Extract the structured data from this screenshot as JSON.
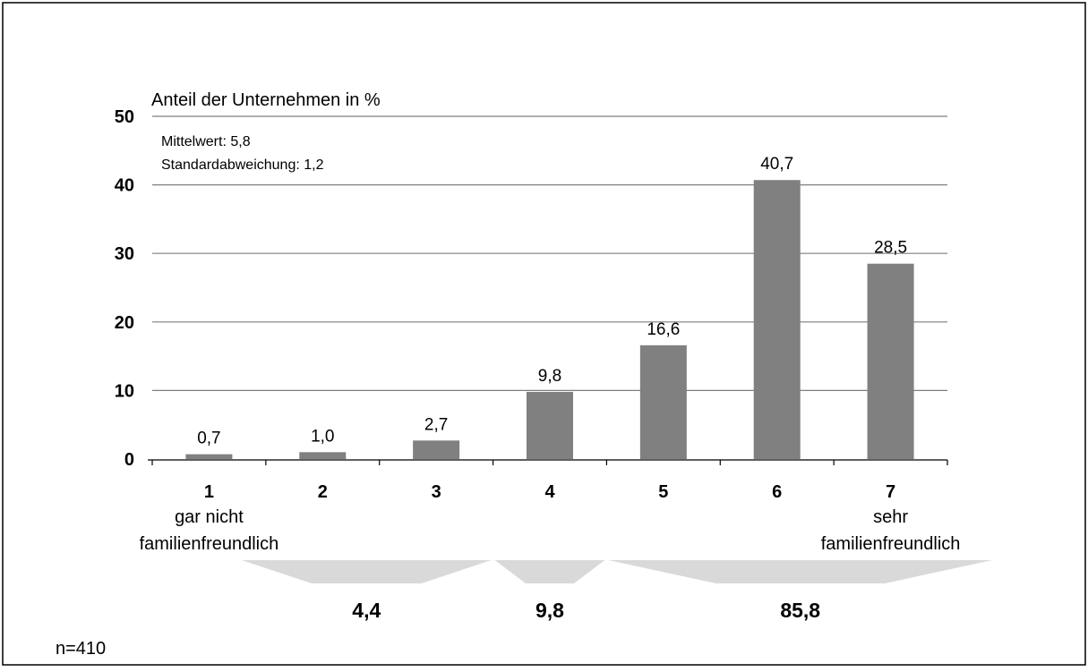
{
  "chart_data": {
    "type": "bar",
    "ylabel": "Anteil der Unternehmen in %",
    "ylim": [
      0,
      50
    ],
    "yticks": [
      0,
      10,
      20,
      30,
      40,
      50
    ],
    "grid": true,
    "categories": [
      "1",
      "2",
      "3",
      "4",
      "5",
      "6",
      "7"
    ],
    "category_sublabels": [
      [
        "gar nicht",
        "familienfreundlich"
      ],
      [],
      [],
      [],
      [],
      [],
      [
        "sehr",
        "familienfreundlich"
      ]
    ],
    "values": [
      0.7,
      1.0,
      2.7,
      9.8,
      16.6,
      40.7,
      28.5
    ],
    "value_labels": [
      "0,7",
      "1,0",
      "2,7",
      "9,8",
      "16,6",
      "40,7",
      "28,5"
    ],
    "annotations": [
      "Mittelwert: 5,8",
      "Standardabweichung: 1,2"
    ],
    "groups": [
      {
        "from": 1,
        "to": 3,
        "value": 4.4,
        "label": "4,4"
      },
      {
        "from": 4,
        "to": 4,
        "value": 9.8,
        "label": "9,8"
      },
      {
        "from": 5,
        "to": 7,
        "value": 85.8,
        "label": "85,8"
      }
    ],
    "note": "n=410",
    "colors": {
      "bar": "#808080",
      "grid": "#7f7f7f",
      "group_shape": "#d9d9d9",
      "text": "#000000"
    }
  }
}
